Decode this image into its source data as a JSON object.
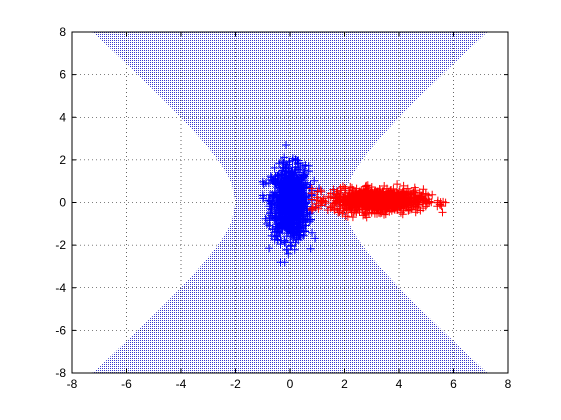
{
  "chart_data": {
    "type": "scatter",
    "title": "",
    "xlabel": "",
    "ylabel": "",
    "xlim": [
      -8,
      8
    ],
    "ylim": [
      -8,
      8
    ],
    "grid": true,
    "grid_style": "dotted",
    "xticks": [
      "-8",
      "-6",
      "-4",
      "-2",
      "0",
      "2",
      "4",
      "6",
      "8"
    ],
    "yticks": [
      "-8",
      "-6",
      "-4",
      "-2",
      "0",
      "2",
      "4",
      "6",
      "8"
    ],
    "decision_region": {
      "description": "shaded blue dotted region between the two branches of a hyperbola opening left and right",
      "shape": "hyperbola",
      "equation": "x^2 / a^2 - y^2 / b^2 = 1 (region outside the left and right branches is white)",
      "a": 2.0,
      "b": 2.3,
      "color": "#3a3acd"
    },
    "series": [
      {
        "marker": "+",
        "color": "#0000ff",
        "cluster": {
          "center": [
            0.0,
            0.0
          ],
          "x_range": [
            -1.0,
            1.2
          ],
          "y_range": [
            -2.8,
            2.7
          ],
          "count": 1000
        }
      },
      {
        "marker": "+",
        "color": "#ff0000",
        "cluster": {
          "center": [
            3.2,
            0.1
          ],
          "x_range": [
            0.8,
            6.3
          ],
          "y_range": [
            -0.7,
            1.0
          ],
          "count": 1000
        }
      }
    ]
  }
}
